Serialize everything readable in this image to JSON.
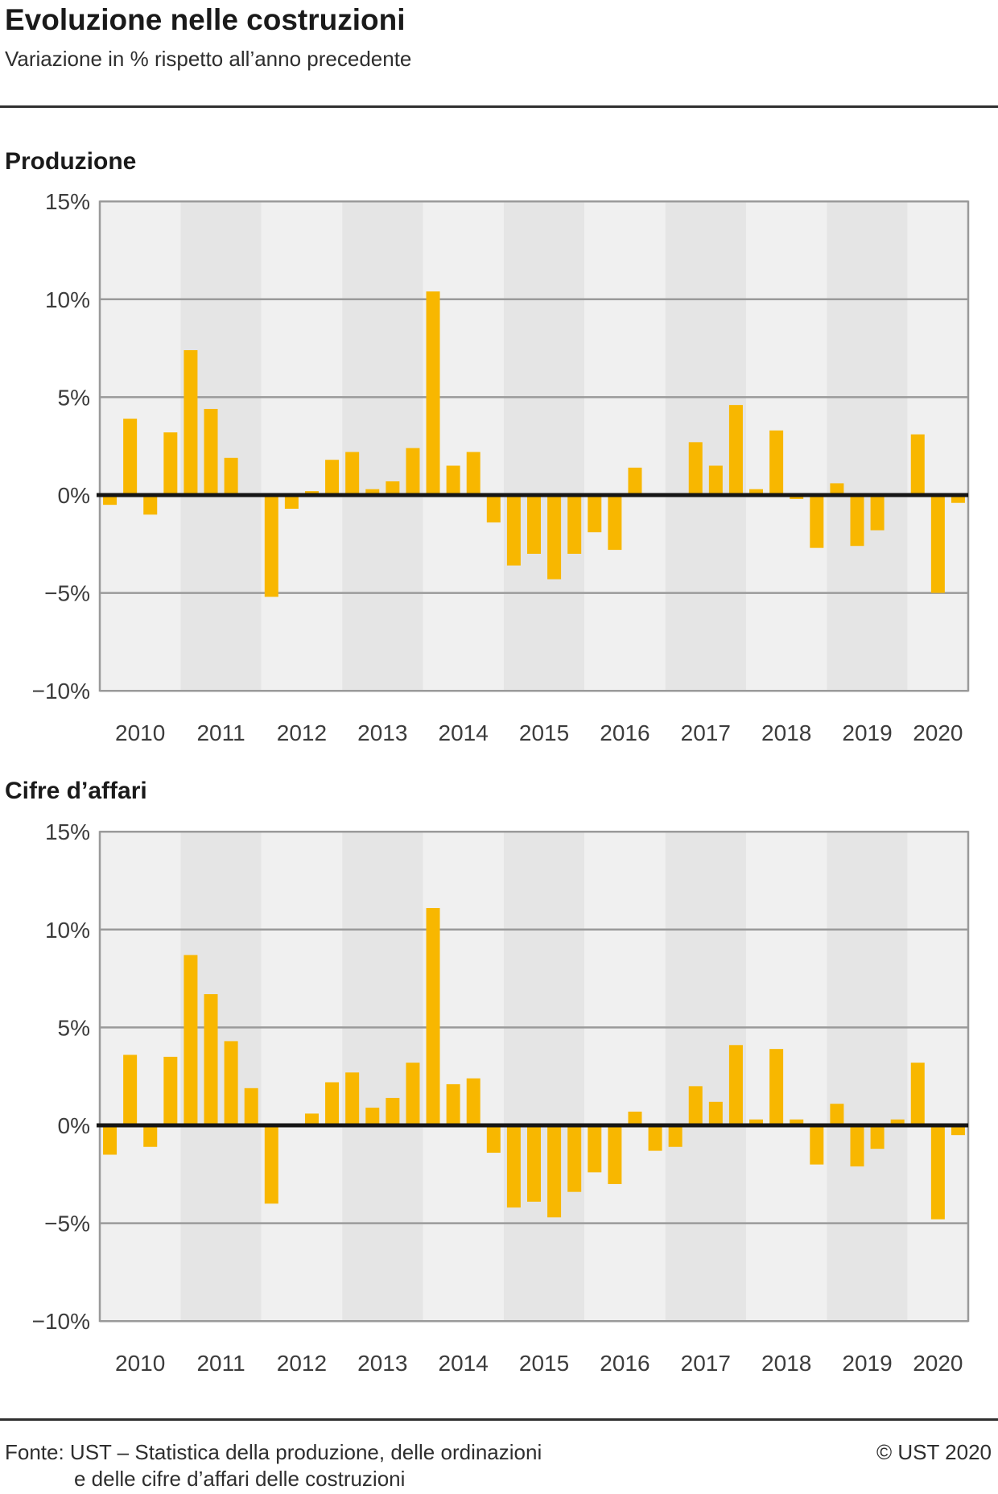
{
  "title": "Evoluzione nelle costruzioni",
  "subtitle": "Variazione in % rispetto all’anno precedente",
  "footer": {
    "line1": "Fonte: UST – Statistica della produzione, delle ordinazioni",
    "line2": "e delle cifre d’affari delle costruzioni",
    "copyright": "© UST 2020"
  },
  "colors": {
    "bar": "#F8B700",
    "band_light": "#F0F0F0",
    "band_dark": "#E5E5E5",
    "grid": "#9A9A9A",
    "zero_line": "#151515",
    "axis_text": "#3C3C3C"
  },
  "chart_data": [
    {
      "type": "bar",
      "title": "Produzione",
      "unit": "%",
      "ylim": [
        -10,
        15
      ],
      "grid": true,
      "legend": "none",
      "ytick_values": [
        15,
        10,
        5,
        0,
        -5,
        -10
      ],
      "ytick_labels": [
        "15%",
        "10%",
        "5%",
        "0%",
        "−5%",
        "−10%"
      ],
      "categories": [
        "2010",
        "2011",
        "2012",
        "2013",
        "2014",
        "2015",
        "2016",
        "2017",
        "2018",
        "2019",
        "2020"
      ],
      "quarterly_values_by_year": [
        [
          -0.5,
          3.9,
          -1.0,
          3.2
        ],
        [
          7.4,
          4.4,
          1.9,
          0
        ],
        [
          -5.2,
          -0.7,
          0.2,
          1.8
        ],
        [
          2.2,
          0.3,
          0.7,
          2.4
        ],
        [
          10.4,
          1.5,
          2.2,
          -1.4
        ],
        [
          -3.6,
          -3.0,
          -4.3,
          -3.0
        ],
        [
          -1.9,
          -2.8,
          1.4,
          0
        ],
        [
          0,
          2.7,
          1.5,
          4.6
        ],
        [
          0.3,
          3.3,
          -0.2,
          -2.7
        ],
        [
          0.6,
          -2.6,
          -1.8,
          0
        ],
        [
          3.1,
          -5.0,
          -0.4
        ]
      ]
    },
    {
      "type": "bar",
      "title": "Cifre d’affari",
      "unit": "%",
      "ylim": [
        -10,
        15
      ],
      "grid": true,
      "legend": "none",
      "ytick_values": [
        15,
        10,
        5,
        0,
        -5,
        -10
      ],
      "ytick_labels": [
        "15%",
        "10%",
        "5%",
        "0%",
        "−5%",
        "−10%"
      ],
      "categories": [
        "2010",
        "2011",
        "2012",
        "2013",
        "2014",
        "2015",
        "2016",
        "2017",
        "2018",
        "2019",
        "2020"
      ],
      "quarterly_values_by_year": [
        [
          -1.5,
          3.6,
          -1.1,
          3.5
        ],
        [
          8.7,
          6.7,
          4.3,
          1.9
        ],
        [
          -4.0,
          0,
          0.6,
          2.2
        ],
        [
          2.7,
          0.9,
          1.4,
          3.2
        ],
        [
          11.1,
          2.1,
          2.4,
          -1.4
        ],
        [
          -4.2,
          -3.9,
          -4.7,
          -3.4
        ],
        [
          -2.4,
          -3.0,
          0.7,
          -1.3
        ],
        [
          -1.1,
          2.0,
          1.2,
          4.1
        ],
        [
          0.3,
          3.9,
          0.3,
          -2.0
        ],
        [
          1.1,
          -2.1,
          -1.2,
          0.3
        ],
        [
          3.2,
          -4.8,
          -0.5
        ]
      ]
    }
  ]
}
